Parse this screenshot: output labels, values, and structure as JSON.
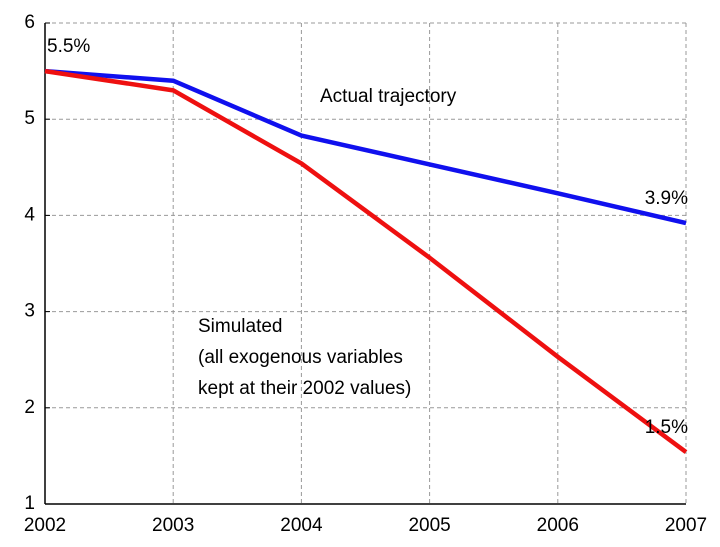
{
  "chart_data": {
    "type": "line",
    "x": [
      2002,
      2003,
      2004,
      2005,
      2006,
      2007
    ],
    "xlim": [
      2002,
      2007
    ],
    "xticks": [
      2002,
      2003,
      2004,
      2005,
      2006,
      2007
    ],
    "ylim": [
      1,
      6
    ],
    "yticks": [
      1,
      2,
      3,
      4,
      5,
      6
    ],
    "grid": true,
    "series": [
      {
        "name": "Actual trajectory",
        "color": "#1010ee",
        "values": [
          5.5,
          5.4,
          4.83,
          4.53,
          4.23,
          3.92
        ],
        "value_labels": [
          "5.5%",
          null,
          null,
          null,
          null,
          "3.9%"
        ]
      },
      {
        "name": "Simulated",
        "notes": [
          "(all exogenous variables",
          "kept at their 2002 values)"
        ],
        "color": "#ee1010",
        "values": [
          5.5,
          5.3,
          4.54,
          3.56,
          2.53,
          1.54
        ],
        "value_labels": [
          null,
          null,
          null,
          null,
          null,
          "1.5%"
        ]
      }
    ]
  }
}
